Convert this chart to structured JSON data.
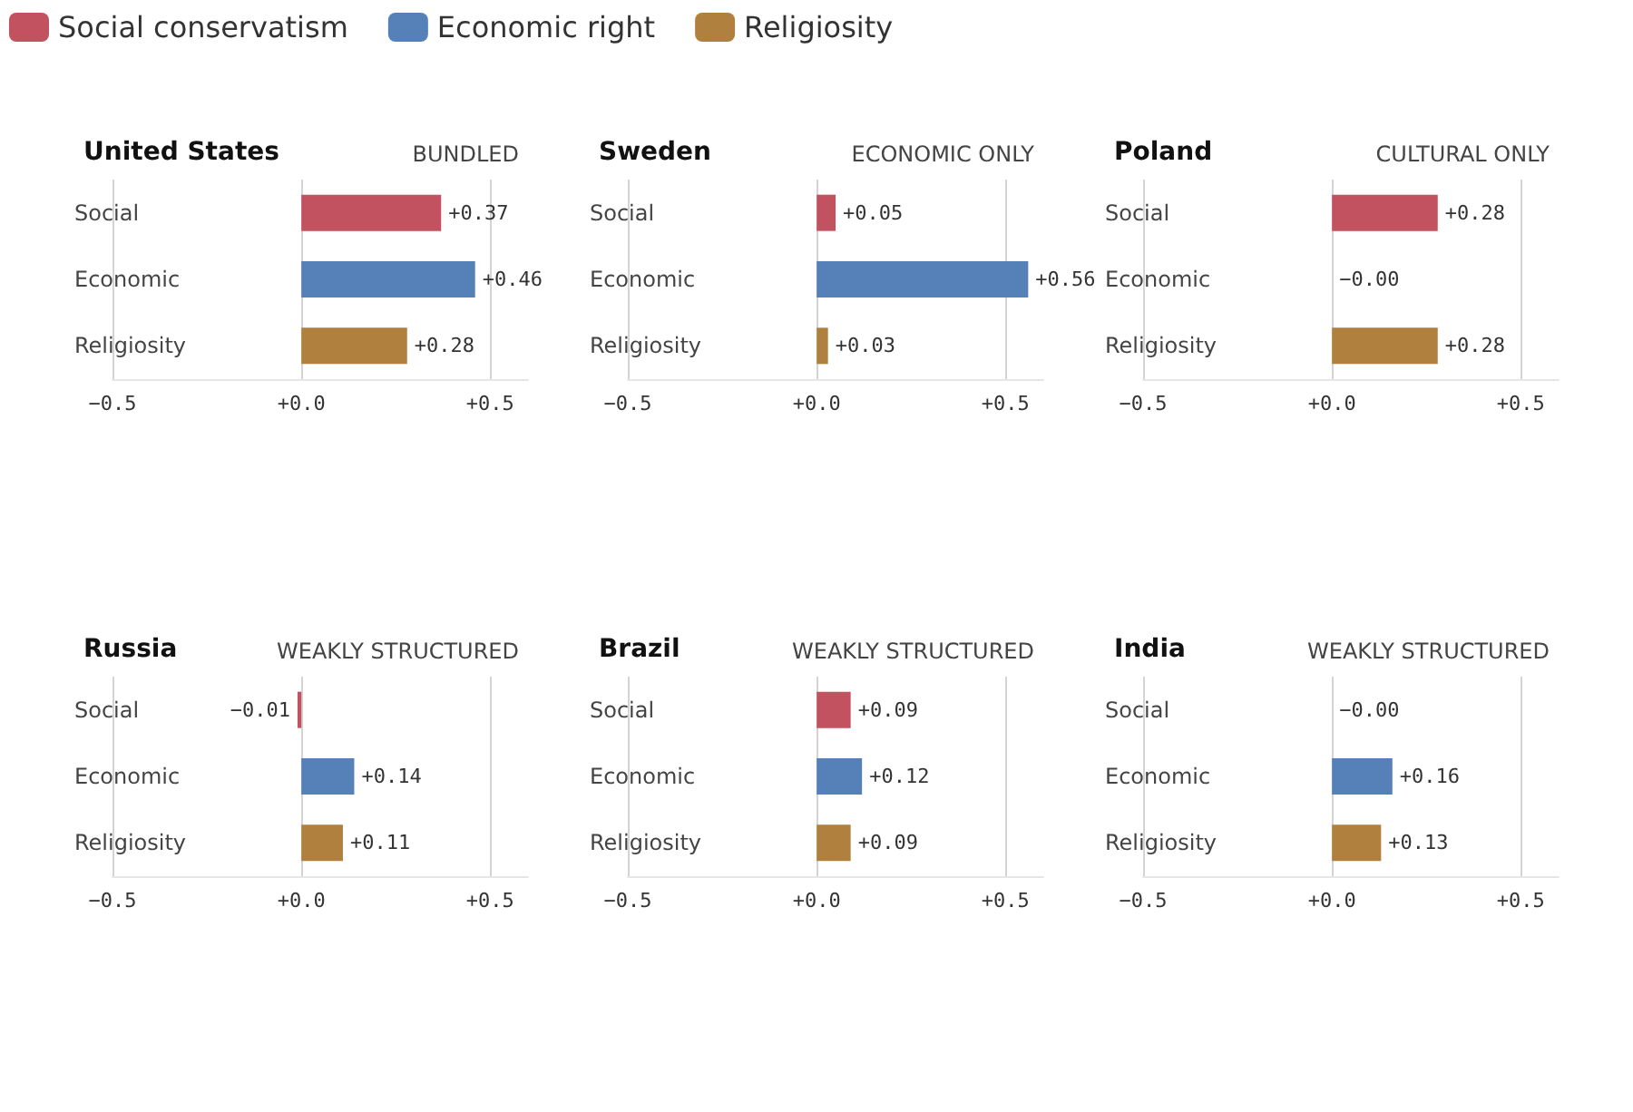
{
  "chart_data": [
    {
      "type": "bar",
      "orientation": "horizontal",
      "title": "United States",
      "subtitle": "BUNDLED",
      "categories": [
        "Social",
        "Economic",
        "Religiosity"
      ],
      "legend": "top",
      "grid": "x",
      "xlim": [
        -0.5,
        0.6
      ],
      "xticks": [
        {
          "value": -0.5,
          "label": "−0.5"
        },
        {
          "value": 0,
          "label": "+0.0"
        },
        {
          "value": 0.5,
          "label": "+0.5"
        }
      ],
      "series": [
        {
          "name": "Social conservatism",
          "color": "#c2525f",
          "values": [
            0.37,
            null,
            null
          ],
          "value_labels": [
            "+0.37",
            null,
            null
          ]
        },
        {
          "name": "Economic right",
          "color": "#5581b8",
          "values": [
            null,
            0.46,
            null
          ],
          "value_labels": [
            null,
            "+0.46",
            null
          ]
        },
        {
          "name": "Religiosity",
          "color": "#b0803f",
          "values": [
            null,
            null,
            0.28
          ],
          "value_labels": [
            null,
            null,
            "+0.28"
          ]
        }
      ]
    },
    {
      "type": "bar",
      "orientation": "horizontal",
      "title": "Sweden",
      "subtitle": "ECONOMIC ONLY",
      "categories": [
        "Social",
        "Economic",
        "Religiosity"
      ],
      "grid": "x",
      "xlim": [
        -0.5,
        0.6
      ],
      "xticks": [
        {
          "value": -0.5,
          "label": "−0.5"
        },
        {
          "value": 0,
          "label": "+0.0"
        },
        {
          "value": 0.5,
          "label": "+0.5"
        }
      ],
      "series": [
        {
          "color": "#c2525f",
          "values": [
            0.05,
            null,
            null
          ],
          "value_labels": [
            "+0.05",
            null,
            null
          ]
        },
        {
          "color": "#5581b8",
          "values": [
            null,
            0.56,
            null
          ],
          "value_labels": [
            null,
            "+0.56",
            null
          ]
        },
        {
          "color": "#b0803f",
          "values": [
            null,
            null,
            0.03
          ],
          "value_labels": [
            null,
            null,
            "+0.03"
          ]
        }
      ]
    },
    {
      "type": "bar",
      "orientation": "horizontal",
      "title": "Poland",
      "subtitle": "CULTURAL ONLY",
      "categories": [
        "Social",
        "Economic",
        "Religiosity"
      ],
      "grid": "x",
      "xlim": [
        -0.5,
        0.6
      ],
      "xticks": [
        {
          "value": -0.5,
          "label": "−0.5"
        },
        {
          "value": 0,
          "label": "+0.0"
        },
        {
          "value": 0.5,
          "label": "+0.5"
        }
      ],
      "series": [
        {
          "color": "#c2525f",
          "values": [
            0.28,
            null,
            null
          ],
          "value_labels": [
            "+0.28",
            null,
            null
          ]
        },
        {
          "color": "#5581b8",
          "values": [
            null,
            0,
            null
          ],
          "value_labels": [
            null,
            "−0.00",
            null
          ]
        },
        {
          "color": "#b0803f",
          "values": [
            null,
            null,
            0.28
          ],
          "value_labels": [
            null,
            null,
            "+0.28"
          ]
        }
      ]
    },
    {
      "type": "bar",
      "orientation": "horizontal",
      "title": "Russia",
      "subtitle": "WEAKLY STRUCTURED",
      "categories": [
        "Social",
        "Economic",
        "Religiosity"
      ],
      "grid": "x",
      "xlim": [
        -0.5,
        0.6
      ],
      "xticks": [
        {
          "value": -0.5,
          "label": "−0.5"
        },
        {
          "value": 0,
          "label": "+0.0"
        },
        {
          "value": 0.5,
          "label": "+0.5"
        }
      ],
      "series": [
        {
          "color": "#c2525f",
          "values": [
            -0.01,
            null,
            null
          ],
          "value_labels": [
            "−0.01",
            null,
            null
          ]
        },
        {
          "color": "#5581b8",
          "values": [
            null,
            0.14,
            null
          ],
          "value_labels": [
            null,
            "+0.14",
            null
          ]
        },
        {
          "color": "#b0803f",
          "values": [
            null,
            null,
            0.11
          ],
          "value_labels": [
            null,
            null,
            "+0.11"
          ]
        }
      ]
    },
    {
      "type": "bar",
      "orientation": "horizontal",
      "title": "Brazil",
      "subtitle": "WEAKLY STRUCTURED",
      "categories": [
        "Social",
        "Economic",
        "Religiosity"
      ],
      "grid": "x",
      "xlim": [
        -0.5,
        0.6
      ],
      "xticks": [
        {
          "value": -0.5,
          "label": "−0.5"
        },
        {
          "value": 0,
          "label": "+0.0"
        },
        {
          "value": 0.5,
          "label": "+0.5"
        }
      ],
      "series": [
        {
          "color": "#c2525f",
          "values": [
            0.09,
            null,
            null
          ],
          "value_labels": [
            "+0.09",
            null,
            null
          ]
        },
        {
          "color": "#5581b8",
          "values": [
            null,
            0.12,
            null
          ],
          "value_labels": [
            null,
            "+0.12",
            null
          ]
        },
        {
          "color": "#b0803f",
          "values": [
            null,
            null,
            0.09
          ],
          "value_labels": [
            null,
            null,
            "+0.09"
          ]
        }
      ]
    },
    {
      "type": "bar",
      "orientation": "horizontal",
      "title": "India",
      "subtitle": "WEAKLY STRUCTURED",
      "categories": [
        "Social",
        "Economic",
        "Religiosity"
      ],
      "grid": "x",
      "xlim": [
        -0.5,
        0.6
      ],
      "xticks": [
        {
          "value": -0.5,
          "label": "−0.5"
        },
        {
          "value": 0,
          "label": "+0.0"
        },
        {
          "value": 0.5,
          "label": "+0.5"
        }
      ],
      "series": [
        {
          "color": "#c2525f",
          "values": [
            0,
            null,
            null
          ],
          "value_labels": [
            "−0.00",
            null,
            null
          ]
        },
        {
          "color": "#5581b8",
          "values": [
            null,
            0.16,
            null
          ],
          "value_labels": [
            null,
            "+0.16",
            null
          ]
        },
        {
          "color": "#b0803f",
          "values": [
            null,
            null,
            0.13
          ],
          "value_labels": [
            null,
            null,
            "+0.13"
          ]
        }
      ]
    }
  ]
}
